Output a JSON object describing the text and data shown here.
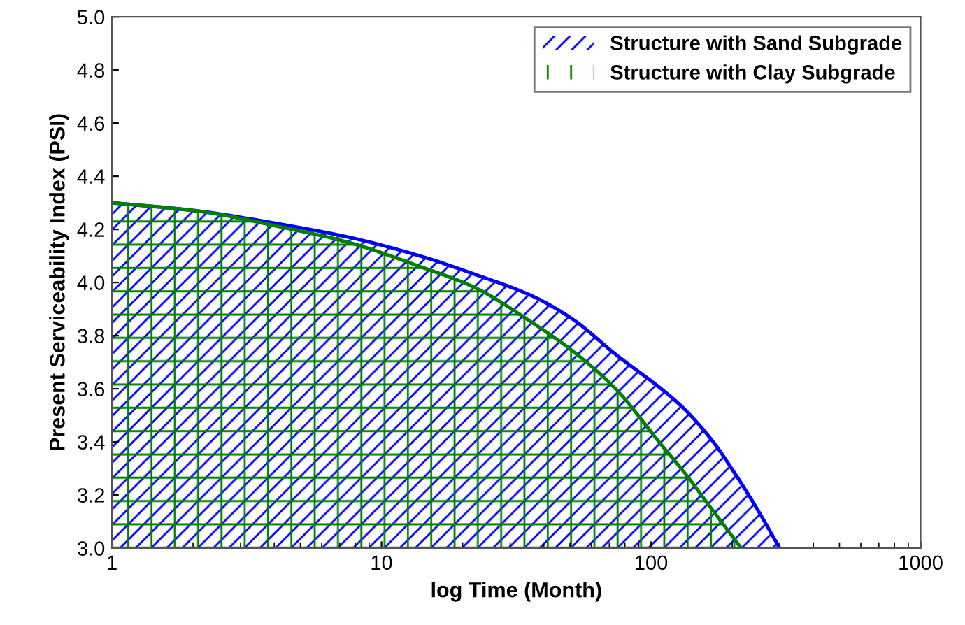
{
  "chart_data": {
    "type": "area",
    "xlabel": "log Time (Month)",
    "ylabel": "Present Serviceability Index (PSI)",
    "log": "x",
    "xlim": [
      1,
      1000
    ],
    "xticks": [
      1,
      10,
      100,
      1000
    ],
    "ylim": [
      3.0,
      5.0
    ],
    "yticks": [
      {
        "value": 3,
        "label": "3.0"
      },
      3.2,
      3.4,
      3.6,
      3.8,
      {
        "value": 4,
        "label": "4.0"
      },
      4.2,
      4.4,
      4.6,
      4.8,
      {
        "value": 5,
        "label": "5.0"
      }
    ],
    "grid": false,
    "legend": "top right",
    "series": [
      {
        "name": "Structure with Sand Subgrade",
        "color": "#0000ff",
        "x": [
          1,
          2.05,
          4.2,
          7.6,
          13.9,
          22.3,
          36.1,
          51.5,
          73.8,
          109,
          134,
          170,
          208,
          250,
          300
        ],
        "values": [
          4.3,
          4.27,
          4.22,
          4.17,
          4.1,
          4.03,
          3.95,
          3.86,
          3.73,
          3.6,
          3.52,
          3.4,
          3.27,
          3.14,
          3.0
        ]
      },
      {
        "name": "Structure with Clay Subgrade",
        "color": "#008000",
        "x": [
          1,
          2.05,
          4.2,
          7.6,
          13.9,
          22.3,
          36.1,
          51.5,
          73.8,
          109,
          134,
          170,
          216
        ],
        "values": [
          4.3,
          4.27,
          4.21,
          4.15,
          4.06,
          3.98,
          3.85,
          3.74,
          3.6,
          3.39,
          3.28,
          3.14,
          3.0
        ]
      }
    ]
  }
}
